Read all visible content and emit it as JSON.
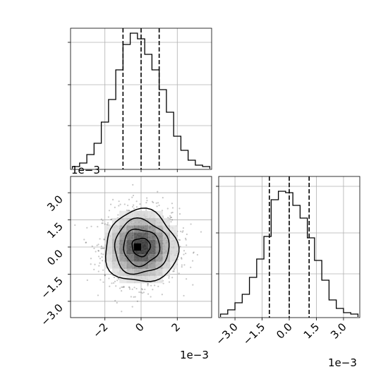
{
  "chart_data": [
    {
      "type": "histogram",
      "panel": "top-left marginal",
      "bin_edges_x1e3": [
        -3.8,
        -3.4,
        -3.0,
        -2.6,
        -2.2,
        -1.8,
        -1.4,
        -1.0,
        -0.6,
        -0.2,
        0.2,
        0.6,
        1.0,
        1.4,
        1.8,
        2.2,
        2.6,
        3.0,
        3.4,
        3.8
      ],
      "relative_heights": [
        0.005,
        0.03,
        0.09,
        0.17,
        0.32,
        0.48,
        0.69,
        0.87,
        0.95,
        0.91,
        0.8,
        0.69,
        0.55,
        0.39,
        0.22,
        0.12,
        0.05,
        0.015,
        0.005
      ],
      "quantile_lines_x1e3": [
        -1.0,
        0.0,
        1.0
      ],
      "xlim_x1e3": [
        -3.9,
        3.9
      ],
      "grid": true
    },
    {
      "type": "histogram",
      "panel": "bottom-right marginal",
      "bin_edges_x1e3": [
        -3.8,
        -3.4,
        -3.0,
        -2.6,
        -2.2,
        -1.8,
        -1.4,
        -1.0,
        -0.6,
        -0.2,
        0.2,
        0.6,
        1.0,
        1.4,
        1.8,
        2.2,
        2.6,
        3.0,
        3.4,
        3.8
      ],
      "relative_heights": [
        0.01,
        0.04,
        0.09,
        0.15,
        0.27,
        0.4,
        0.56,
        0.82,
        0.88,
        0.87,
        0.78,
        0.69,
        0.55,
        0.39,
        0.25,
        0.11,
        0.05,
        0.02,
        0.01
      ],
      "quantile_lines_x1e3": [
        -1.1,
        0.0,
        1.1
      ],
      "xlim_x1e3": [
        -3.9,
        3.9
      ],
      "xticks": [
        "−3.0",
        "−1.5",
        "0.0",
        "1.5",
        "3.0"
      ],
      "tick_values_x1e3": [
        -3.0,
        -1.5,
        0.0,
        1.5,
        3.0
      ],
      "offset_label": "1e−3",
      "grid": true
    },
    {
      "type": "scatter_density_contour",
      "panel": "bottom-left 2D",
      "xlim_x1e3": [
        -3.9,
        3.9
      ],
      "ylim_x1e3": [
        -3.9,
        3.9
      ],
      "x_ticks": [
        "−2",
        "0",
        "2"
      ],
      "x_tick_values_x1e3": [
        -2,
        0,
        2
      ],
      "y_ticks": [
        "3.0",
        "1.5",
        "0.0",
        "−1.5",
        "−3.0"
      ],
      "y_tick_values_x1e3": [
        3.0,
        1.5,
        0.0,
        -1.5,
        -3.0
      ],
      "x_offset_label": "1e−3",
      "y_offset_label": "1e−3",
      "center_x1e3": [
        0.0,
        0.0
      ],
      "sigma_x1e3": 1.0,
      "contour_levels_sigma": [
        0.5,
        1.0,
        1.5,
        2.0
      ],
      "grid": true
    }
  ]
}
